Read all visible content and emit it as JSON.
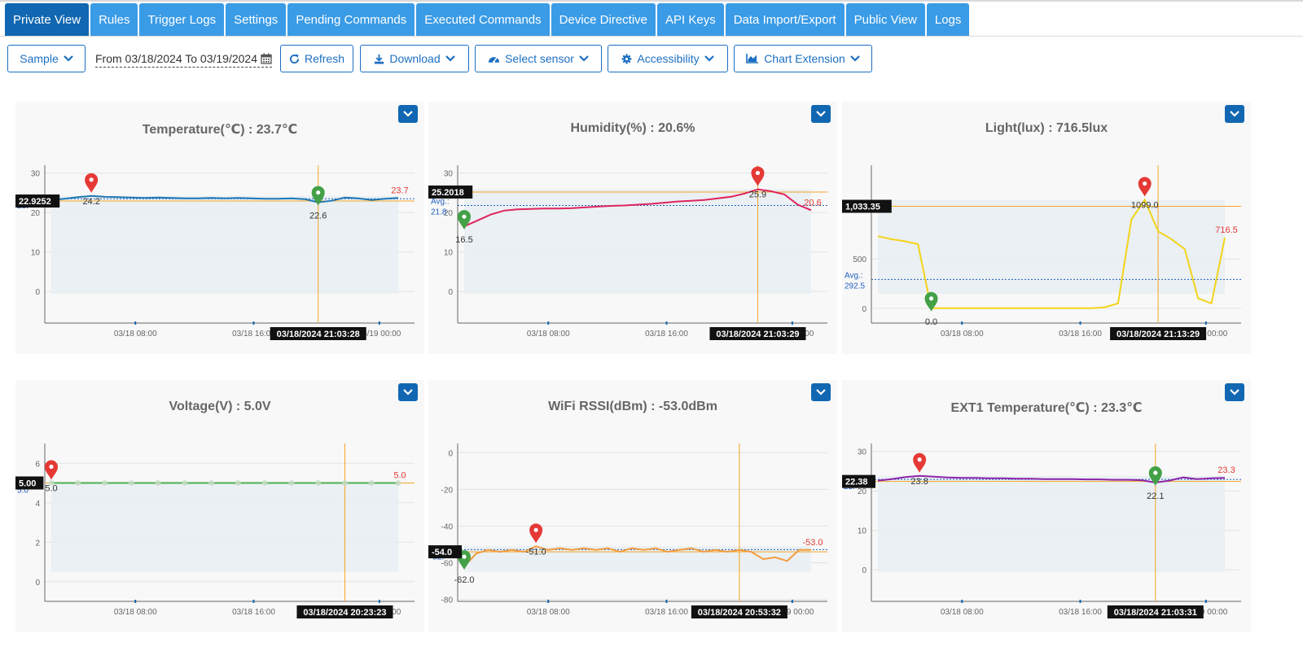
{
  "nav": {
    "tabs": [
      {
        "label": "Private View",
        "active": true
      },
      {
        "label": "Rules"
      },
      {
        "label": "Trigger Logs"
      },
      {
        "label": "Settings"
      },
      {
        "label": "Pending Commands"
      },
      {
        "label": "Executed Commands"
      },
      {
        "label": "Device Directive"
      },
      {
        "label": "API Keys"
      },
      {
        "label": "Data Import/Export"
      },
      {
        "label": "Public View"
      },
      {
        "label": "Logs"
      }
    ]
  },
  "toolbar": {
    "sample_label": "Sample",
    "date_range": "From 03/18/2024 To 03/19/2024",
    "refresh_label": "Refresh",
    "download_label": "Download",
    "select_sensor_label": "Select sensor",
    "accessibility_label": "Accessibility",
    "chart_extension_label": "Chart Extension"
  },
  "colors": {
    "tab": "#3a9be6",
    "tab_active": "#1167b1",
    "accent": "#1b6fc2",
    "crosshair": "#f5a623",
    "max_marker": "#e53935",
    "min_marker": "#43a047"
  },
  "chart_data": [
    {
      "type": "line",
      "title": "Temperature(℃) : 23.7℃",
      "color": "#1f77b4",
      "ylim": [
        -8,
        32
      ],
      "yticks": [
        0,
        10,
        20,
        30
      ],
      "xlabels": [
        "03/18 08:00",
        "03/18 16:00",
        "03/19 00:00"
      ],
      "xlabel_positions": [
        0.245,
        0.565,
        0.905
      ],
      "values": [
        23.2,
        23.5,
        23.9,
        24.2,
        24.0,
        23.9,
        23.8,
        23.7,
        23.8,
        23.7,
        23.6,
        23.6,
        23.7,
        23.6,
        23.7,
        23.6,
        23.5,
        23.5,
        23.6,
        23.4,
        22.6,
        23.0,
        23.8,
        23.6,
        23.2,
        23.5,
        23.7
      ],
      "max": {
        "value": "24.2",
        "index": 3
      },
      "min": {
        "value": "22.6",
        "index": 20
      },
      "last_label": "23.7",
      "avg": {
        "label": "23.",
        "value": 23.5
      },
      "crosshair": {
        "index": 20,
        "y_value": 22.9252,
        "y_label": "22.9252",
        "x_label": "03/18/2024 21:03:28"
      }
    },
    {
      "type": "line",
      "title": "Humidity(%) : 20.6%",
      "color": "#e0245e",
      "ylim": [
        -8,
        32
      ],
      "yticks": [
        0,
        10,
        20,
        30
      ],
      "xlabels": [
        "03/18 08:00",
        "03/18 16:00",
        "03/19 00:00"
      ],
      "xlabel_positions": [
        0.245,
        0.565,
        0.905
      ],
      "values": [
        16.5,
        18.0,
        19.5,
        20.5,
        20.8,
        20.9,
        21.0,
        21.0,
        21.1,
        21.3,
        21.5,
        21.7,
        21.8,
        22.0,
        22.2,
        22.5,
        22.8,
        23.0,
        23.2,
        23.6,
        24.0,
        24.8,
        25.9,
        25.4,
        24.6,
        22.0,
        20.6
      ],
      "max": {
        "value": "25.9",
        "index": 22
      },
      "min": {
        "value": "16.5",
        "index": 0
      },
      "last_label": "20.6",
      "avg": {
        "label": "Avg.: 21.8",
        "value": 21.8
      },
      "crosshair": {
        "index": 22,
        "y_value": 25.2018,
        "y_label": "25.2018",
        "x_label": "03/18/2024 21:03:29"
      }
    },
    {
      "type": "line",
      "title": "Light(lux) : 716.5lux",
      "color": "#f2d41a",
      "ylim": [
        -150,
        1450
      ],
      "yticks": [
        0,
        500
      ],
      "xlabels": [
        "03/18 08:00",
        "03/18 16:00",
        "03/19 00:00"
      ],
      "xlabel_positions": [
        0.245,
        0.565,
        0.905
      ],
      "values": [
        730,
        700,
        680,
        650,
        0,
        0,
        0,
        0,
        0,
        0,
        0,
        0,
        0,
        0,
        0,
        0,
        0,
        10,
        50,
        900,
        1099,
        780,
        700,
        600,
        100,
        50,
        716.5
      ],
      "max": {
        "value": "1099.0",
        "index": 20
      },
      "min": {
        "value": "0.0",
        "index": 4
      },
      "last_label": "716.5",
      "avg": {
        "label": "Avg.: 292.5",
        "value": 292.5
      },
      "crosshair": {
        "index": 21,
        "y_value": 1033.35,
        "y_label": "1,033.35",
        "x_label": "03/18/2024 21:13:29"
      }
    },
    {
      "type": "line",
      "title": "Voltage(V) : 5.0V",
      "color": "#4caf50",
      "ylim": [
        -1,
        7
      ],
      "yticks": [
        0,
        2,
        4,
        6
      ],
      "xlabels": [
        "03/18 08:00",
        "03/18 16:00",
        "03/19 00:00"
      ],
      "xlabel_positions": [
        0.245,
        0.565,
        0.905
      ],
      "values": [
        5.0,
        5.0,
        5.0,
        5.0,
        5.0,
        5.0,
        5.0,
        5.0,
        5.0,
        5.0,
        5.0,
        5.0,
        5.0,
        5.0
      ],
      "max": {
        "value": "5.0",
        "index": 0
      },
      "min": null,
      "last_label": "5.0",
      "avg": {
        "label": "5.0",
        "value": 5.0
      },
      "crosshair": {
        "index": 11,
        "y_value": 5.0,
        "y_label": "5.00",
        "x_label": "03/18/2024 20:23:23"
      }
    },
    {
      "type": "line",
      "title": "WiFi RSSI(dBm) : -53.0dBm",
      "color": "#f39c40",
      "ylim": [
        -81,
        5
      ],
      "yticks": [
        0,
        -20,
        -40,
        -60,
        -80
      ],
      "ytick_labels": [
        "0",
        "-20",
        "-40",
        "-60",
        "-80"
      ],
      "xlabels": [
        "03/18 08:00",
        "03/18 16:00",
        "03/19 00:00"
      ],
      "xlabel_positions": [
        0.245,
        0.565,
        0.905
      ],
      "values": [
        -62,
        -55,
        -53,
        -54,
        -53,
        -54,
        -51,
        -53,
        -52,
        -53,
        -52,
        -53,
        -52,
        -54,
        -52,
        -53,
        -52,
        -54,
        -53,
        -52,
        -54,
        -53,
        -54,
        -53,
        -54,
        -58,
        -57,
        -59,
        -53,
        -53
      ],
      "max": {
        "value": "-51.0",
        "index": 6
      },
      "min": {
        "value": "-62.0",
        "index": 0
      },
      "last_label": "-53.0",
      "avg": {
        "label": "-52.",
        "value": -52.8
      },
      "crosshair": {
        "index": 23,
        "y_value": -54.0,
        "y_label": "-54.0",
        "x_label": "03/18/2024 20:53:32"
      }
    },
    {
      "type": "line",
      "title": "EXT1 Temperature(℃) : 23.3℃",
      "color": "#8e24aa",
      "ylim": [
        -8,
        32
      ],
      "yticks": [
        0,
        10,
        20,
        30
      ],
      "xlabels": [
        "03/18 08:00",
        "03/18 16:00",
        "03/19 00:00"
      ],
      "xlabel_positions": [
        0.245,
        0.565,
        0.905
      ],
      "values": [
        22.6,
        23.0,
        23.5,
        23.8,
        23.6,
        23.4,
        23.3,
        23.3,
        23.2,
        23.2,
        23.1,
        23.1,
        23.0,
        23.0,
        23.0,
        22.9,
        22.9,
        22.8,
        22.8,
        22.7,
        22.1,
        22.6,
        23.4,
        23.0,
        23.2,
        23.3
      ],
      "max": {
        "value": "23.8",
        "index": 3
      },
      "min": {
        "value": "22.1",
        "index": 20
      },
      "last_label": "23.3",
      "avg": {
        "label": "23.",
        "value": 22.9
      },
      "crosshair": {
        "index": 20,
        "y_value": 22.38,
        "y_label": "22.38",
        "x_label": "03/18/2024 21:03:31"
      }
    }
  ]
}
